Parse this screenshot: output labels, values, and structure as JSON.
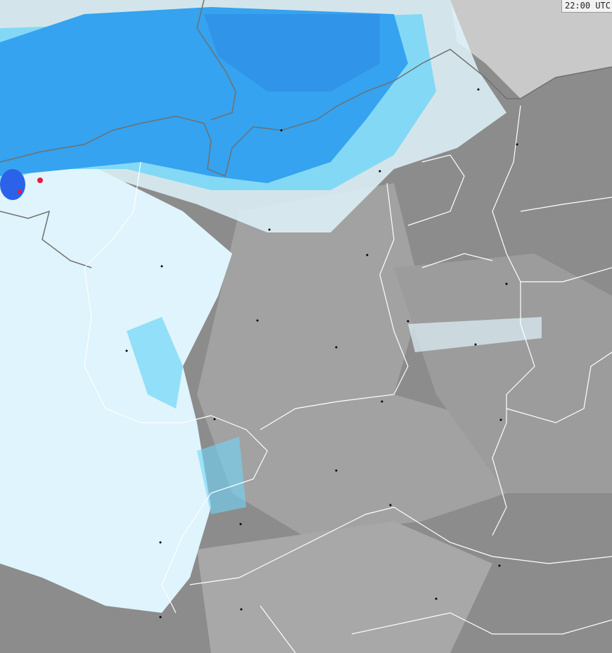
{
  "map": {
    "time_label": "22:00 UTC",
    "colors": {
      "land_dark": "#8c8c8c",
      "land_mid": "#9e9e9e",
      "land_light": "#b4b4b4",
      "sea_clear": "#c9c9c9",
      "precip_very_light": "#dff4fc",
      "precip_light": "#6fd6f8",
      "precip_moderate": "#35a3ef",
      "precip_heavy": "#2b62e8",
      "precip_intense": "#e0203a",
      "border": "#ffffff",
      "coast": "#707070",
      "city": "#000000"
    }
  }
}
